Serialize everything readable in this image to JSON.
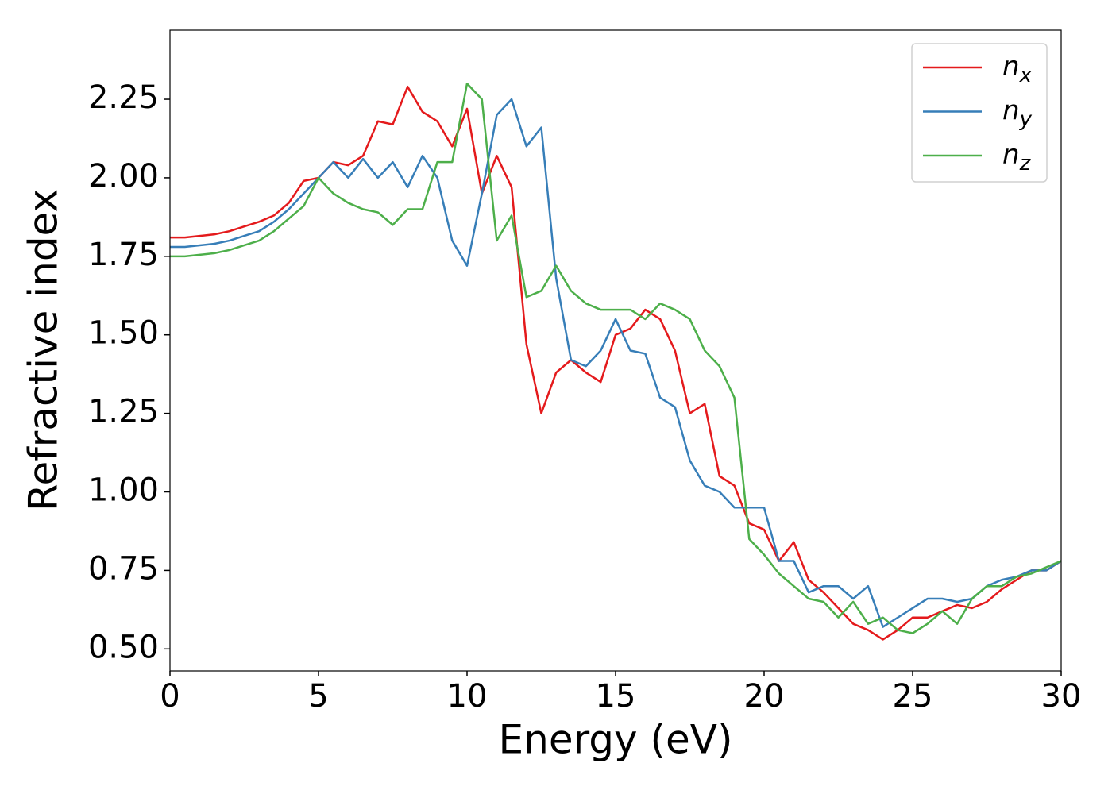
{
  "chart_data": {
    "type": "line",
    "xlabel": "Energy (eV)",
    "ylabel": "Refractive index",
    "xlim": [
      0,
      30
    ],
    "ylim": [
      0.43,
      2.47
    ],
    "xticks": [
      0,
      5,
      10,
      15,
      20,
      25,
      30
    ],
    "yticks": [
      {
        "value": 0.5,
        "label": "0.50"
      },
      0.75,
      {
        "value": 1,
        "label": "1.00"
      },
      1.25,
      {
        "value": 1.5,
        "label": "1.50"
      },
      1.75,
      {
        "value": 2,
        "label": "2.00"
      },
      2.25
    ],
    "grid": false,
    "legend": "upper right",
    "x": [
      0,
      0.5,
      1,
      1.5,
      2,
      2.5,
      3,
      3.5,
      4,
      4.5,
      5,
      5.5,
      6,
      6.5,
      7,
      7.5,
      8,
      8.5,
      9,
      9.5,
      10,
      10.5,
      11,
      11.5,
      12,
      12.5,
      13,
      13.5,
      14,
      14.5,
      15,
      15.5,
      16,
      16.5,
      17,
      17.5,
      18,
      18.5,
      19,
      19.5,
      20,
      20.5,
      21,
      21.5,
      22,
      22.5,
      23,
      23.5,
      24,
      24.5,
      25,
      25.5,
      26,
      26.5,
      27,
      27.5,
      28,
      28.5,
      29,
      29.5,
      30
    ],
    "series": [
      {
        "name": "n_x",
        "color": "#e41a1c",
        "values": [
          1.81,
          1.81,
          1.815,
          1.82,
          1.83,
          1.845,
          1.86,
          1.88,
          1.92,
          1.99,
          2.0,
          2.05,
          2.04,
          2.07,
          2.18,
          2.17,
          2.29,
          2.21,
          2.18,
          2.1,
          2.22,
          1.95,
          2.07,
          1.97,
          1.47,
          1.25,
          1.38,
          1.42,
          1.38,
          1.35,
          1.5,
          1.52,
          1.58,
          1.55,
          1.45,
          1.25,
          1.28,
          1.05,
          1.02,
          0.9,
          0.88,
          0.78,
          0.84,
          0.72,
          0.68,
          0.63,
          0.58,
          0.56,
          0.53,
          0.56,
          0.6,
          0.6,
          0.62,
          0.64,
          0.63,
          0.65,
          0.69,
          0.72,
          0.75,
          0.75,
          0.78
        ]
      },
      {
        "name": "n_y",
        "color": "#377eb8",
        "values": [
          1.78,
          1.78,
          1.785,
          1.79,
          1.8,
          1.815,
          1.83,
          1.86,
          1.9,
          1.95,
          2.0,
          2.05,
          2.0,
          2.06,
          2.0,
          2.05,
          1.97,
          2.07,
          2.0,
          1.8,
          1.72,
          1.95,
          2.2,
          2.25,
          2.1,
          2.16,
          1.68,
          1.42,
          1.4,
          1.45,
          1.55,
          1.45,
          1.44,
          1.3,
          1.27,
          1.1,
          1.02,
          1.0,
          0.95,
          0.95,
          0.95,
          0.78,
          0.78,
          0.68,
          0.7,
          0.7,
          0.66,
          0.7,
          0.57,
          0.6,
          0.63,
          0.66,
          0.66,
          0.65,
          0.66,
          0.7,
          0.72,
          0.73,
          0.75,
          0.75,
          0.78
        ]
      },
      {
        "name": "n_z",
        "color": "#4daf4a",
        "values": [
          1.75,
          1.75,
          1.755,
          1.76,
          1.77,
          1.785,
          1.8,
          1.83,
          1.87,
          1.91,
          2.0,
          1.95,
          1.92,
          1.9,
          1.89,
          1.85,
          1.9,
          1.9,
          2.05,
          2.05,
          2.3,
          2.25,
          1.8,
          1.88,
          1.62,
          1.64,
          1.72,
          1.64,
          1.6,
          1.58,
          1.58,
          1.58,
          1.55,
          1.6,
          1.58,
          1.55,
          1.45,
          1.4,
          1.3,
          0.85,
          0.8,
          0.74,
          0.7,
          0.66,
          0.65,
          0.6,
          0.65,
          0.58,
          0.6,
          0.56,
          0.55,
          0.58,
          0.62,
          0.58,
          0.66,
          0.7,
          0.7,
          0.73,
          0.74,
          0.76,
          0.78
        ]
      }
    ]
  }
}
